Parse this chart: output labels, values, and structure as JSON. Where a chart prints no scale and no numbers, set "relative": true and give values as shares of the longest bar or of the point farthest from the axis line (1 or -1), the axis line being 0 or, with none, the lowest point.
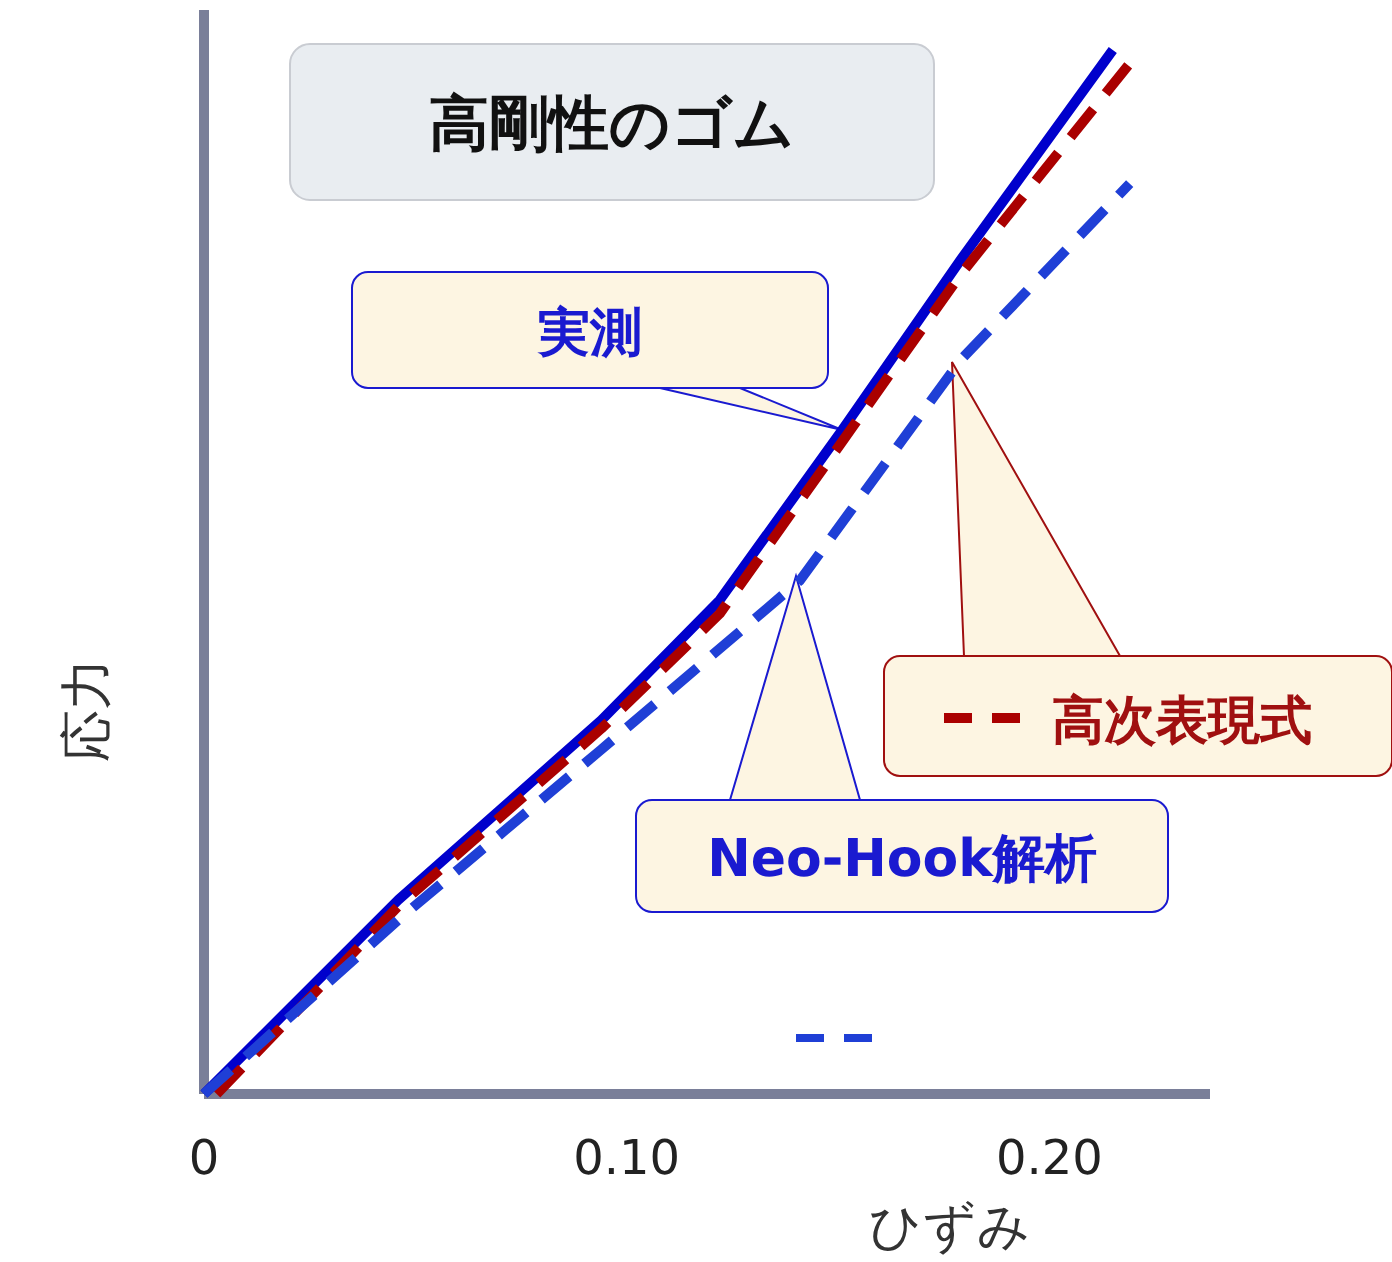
{
  "chart_data": {
    "type": "line",
    "title": "高剛性のゴム",
    "xlabel": "ひずみ",
    "ylabel": "応力",
    "relative": true,
    "xlim": [
      0,
      0.238
    ],
    "xticks": [
      0,
      {
        "value": 0.1,
        "label": "0.10"
      },
      {
        "value": 0.2,
        "label": "0.20"
      }
    ],
    "series": [
      {
        "color": "#0000cc",
        "line_style": "solid",
        "x": [
          0,
          0.046,
          0.094,
          0.122,
          0.151,
          0.179,
          0.215
        ],
        "values": [
          0,
          0.186,
          0.358,
          0.473,
          0.636,
          0.799,
          1
        ]
      },
      {
        "color": "#aa0000",
        "line_style": "dashed",
        "x": [
          0.003,
          0.046,
          0.094,
          0.122,
          0.151,
          0.179,
          0.219
        ],
        "values": [
          0,
          0.18,
          0.35,
          0.46,
          0.625,
          0.785,
          0.987
        ]
      },
      {
        "color": "#1f3fd6",
        "line_style": "dashed",
        "x": [
          0,
          0.046,
          0.094,
          0.141,
          0.179,
          0.219
        ],
        "values": [
          0,
          0.167,
          0.33,
          0.492,
          0.703,
          0.872
        ]
      }
    ],
    "annotations": [
      {
        "text": "実測",
        "x": 0.151,
        "y": 0.636
      },
      "高次表現式",
      "Neo-Hook解析"
    ]
  }
}
